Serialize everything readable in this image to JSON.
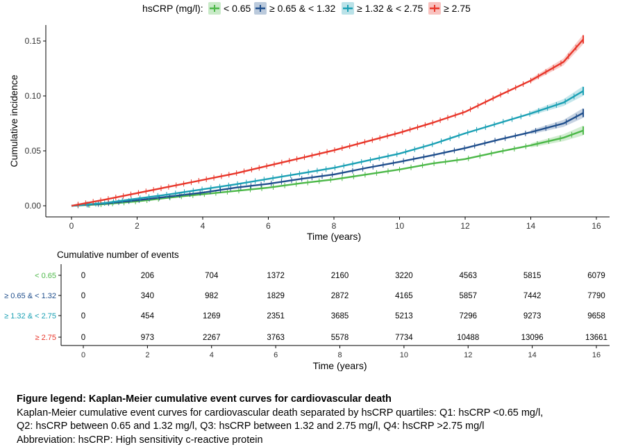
{
  "legend": {
    "title": "hsCRP (mg/l):",
    "items": [
      {
        "label": "< 0.65",
        "color": "#4cb848"
      },
      {
        "label": "≥ 0.65 & < 1.32",
        "color": "#1f4e8c"
      },
      {
        "label": "≥ 1.32 & < 2.75",
        "color": "#1aa0b4"
      },
      {
        "label": "≥ 2.75",
        "color": "#e8362a"
      }
    ]
  },
  "chart_data": {
    "type": "line",
    "title": "",
    "xlabel": "Time (years)",
    "ylabel": "Cumulative incidence",
    "xlim": [
      0,
      16
    ],
    "ylim": [
      0,
      0.155
    ],
    "x_ticks": [
      0,
      2,
      4,
      6,
      8,
      10,
      12,
      14,
      16
    ],
    "x_tick_labels": [
      "0",
      "2",
      "4",
      "6",
      "8",
      "10",
      "12",
      "14",
      "16"
    ],
    "y_ticks": [
      0.0,
      0.05,
      0.1,
      0.15
    ],
    "y_tick_labels": [
      "0.00",
      "0.05",
      "0.10",
      "0.15"
    ],
    "grid": false,
    "legend_position": "top",
    "x": [
      0,
      1,
      2,
      3,
      4,
      5,
      6,
      7,
      8,
      9,
      10,
      11,
      12,
      13,
      14,
      15,
      15.6
    ],
    "series": [
      {
        "name": "< 0.65",
        "color": "#4cb848",
        "values": [
          0,
          0.0015,
          0.004,
          0.0075,
          0.0105,
          0.0135,
          0.0165,
          0.0205,
          0.024,
          0.0285,
          0.033,
          0.0385,
          0.0425,
          0.049,
          0.055,
          0.062,
          0.0685
        ]
      },
      {
        "name": "≥ 0.65 & < 1.32",
        "color": "#1f4e8c",
        "values": [
          0,
          0.002,
          0.005,
          0.0085,
          0.012,
          0.0165,
          0.02,
          0.0245,
          0.0285,
          0.0345,
          0.04,
          0.046,
          0.0525,
          0.06,
          0.067,
          0.075,
          0.0845
        ]
      },
      {
        "name": "≥ 1.32 & < 2.75",
        "color": "#1aa0b4",
        "values": [
          0,
          0.0025,
          0.0065,
          0.0105,
          0.015,
          0.0195,
          0.0245,
          0.0295,
          0.0345,
          0.041,
          0.0475,
          0.056,
          0.066,
          0.075,
          0.084,
          0.094,
          0.1045
        ]
      },
      {
        "name": "≥ 2.75",
        "color": "#e8362a",
        "values": [
          0,
          0.0055,
          0.0115,
          0.0175,
          0.0235,
          0.0295,
          0.0365,
          0.0435,
          0.0505,
          0.0585,
          0.0665,
          0.0755,
          0.0855,
          0.1,
          0.114,
          0.131,
          0.1515
        ]
      }
    ]
  },
  "risk_table": {
    "title": "Cumulative number of events",
    "xlabel": "Time (years)",
    "times": [
      0,
      2,
      4,
      6,
      8,
      10,
      12,
      14,
      16
    ],
    "time_labels": [
      "0",
      "2",
      "4",
      "6",
      "8",
      "10",
      "12",
      "14",
      "16"
    ],
    "rows": [
      {
        "label": "< 0.65",
        "color": "#4cb848",
        "values": [
          "0",
          "206",
          "704",
          "1372",
          "2160",
          "3220",
          "4563",
          "5815",
          "6079"
        ]
      },
      {
        "label": "≥ 0.65 & < 1.32",
        "color": "#1f4e8c",
        "values": [
          "0",
          "340",
          "982",
          "1829",
          "2872",
          "4165",
          "5857",
          "7442",
          "7790"
        ]
      },
      {
        "label": "≥ 1.32 & < 2.75",
        "color": "#1aa0b4",
        "values": [
          "0",
          "454",
          "1269",
          "2351",
          "3685",
          "5213",
          "7296",
          "9273",
          "9658"
        ]
      },
      {
        "label": "≥ 2.75",
        "color": "#e8362a",
        "values": [
          "0",
          "973",
          "2267",
          "3763",
          "5578",
          "7734",
          "10488",
          "13096",
          "13661"
        ]
      }
    ]
  },
  "caption": {
    "heading": "Figure legend: Kaplan-Meier cumulative event curves for cardiovascular death",
    "line1": "Kaplan-Meier cumulative event curves for cardiovascular death separated by hsCRP quartiles: Q1: hsCRP <0.65 mg/l,",
    "line2": "Q2: hsCRP between 0.65 and 1.32 mg/l, Q3: hsCRP between 1.32 and 2.75 mg/l, Q4: hsCRP >2.75 mg/l",
    "line3": "Abbreviation: hsCRP: High sensitivity c-reactive protein"
  }
}
